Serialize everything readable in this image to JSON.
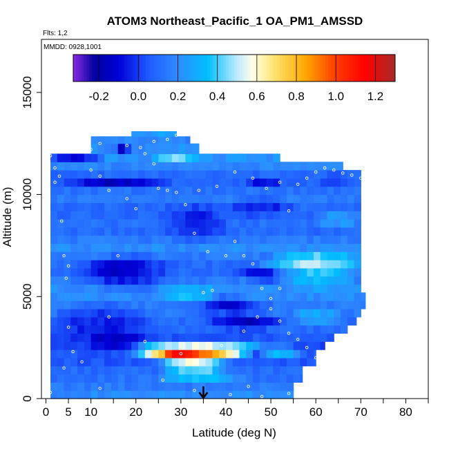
{
  "chart_data": {
    "type": "heatmap",
    "title": "ATOM3 Northeast_Pacific_1 OA_PM1_AMSSD",
    "notes": {
      "flights": "Flts: 1,2",
      "dates": "MMDD: 0928,1001"
    },
    "xlabel": "Latitude (deg N)",
    "ylabel": "Altitude (m)",
    "xlim": [
      -1,
      85
    ],
    "ylim": [
      0,
      17600
    ],
    "xticks": [
      0,
      5,
      10,
      20,
      30,
      40,
      50,
      60,
      70,
      80
    ],
    "xtick_labels": [
      "0",
      "5",
      "10",
      "20",
      "30",
      "40",
      "50",
      "60",
      "70",
      "80"
    ],
    "xtick_minor": [
      15,
      25,
      35,
      45,
      55,
      65,
      75,
      85
    ],
    "yticks": [
      0,
      5000,
      10000,
      15000
    ],
    "ytick_labels": [
      "0",
      "5000",
      "10000",
      "15000"
    ],
    "colorbar": {
      "range": [
        -0.33,
        1.3
      ],
      "ticks": [
        -0.2,
        0.0,
        0.2,
        0.4,
        0.6,
        0.8,
        1.0,
        1.2
      ],
      "tick_labels": [
        "-0.2",
        "0.0",
        "0.2",
        "0.4",
        "0.6",
        "0.8",
        "1.0",
        "1.2"
      ],
      "stops": [
        {
          "v": -0.33,
          "c": "#8a2be2"
        },
        {
          "v": -0.22,
          "c": "#0000a0"
        },
        {
          "v": -0.1,
          "c": "#0000d8"
        },
        {
          "v": 0.05,
          "c": "#1e5aff"
        },
        {
          "v": 0.2,
          "c": "#2f8bff"
        },
        {
          "v": 0.35,
          "c": "#00bfff"
        },
        {
          "v": 0.5,
          "c": "#bfeaff"
        },
        {
          "v": 0.58,
          "c": "#ffffe6"
        },
        {
          "v": 0.7,
          "c": "#ffe066"
        },
        {
          "v": 0.85,
          "c": "#ffa500"
        },
        {
          "v": 1.0,
          "c": "#ff3c00"
        },
        {
          "v": 1.15,
          "c": "#ff0000"
        },
        {
          "v": 1.3,
          "c": "#a52a2a"
        }
      ]
    },
    "default_value": 0.18,
    "grid": false,
    "bands": [
      {
        "y0": 0,
        "y1": 400,
        "lat_max": 55,
        "value": 0.2
      },
      {
        "y0": 400,
        "y1": 800,
        "lat_max": 55,
        "value": 0.15
      },
      {
        "y0": 800,
        "y1": 1200,
        "lat_max": 57,
        "value": 0.12
      },
      {
        "y0": 1200,
        "y1": 1600,
        "lat_max": 57,
        "value": 0.1
      },
      {
        "y0": 1600,
        "y1": 2000,
        "lat_max": 60,
        "value": 0.05
      },
      {
        "y0": 2000,
        "y1": 2400,
        "lat_max": 60,
        "value": 0.05
      },
      {
        "y0": 2400,
        "y1": 2800,
        "lat_max": 62,
        "value": 0.0
      },
      {
        "y0": 2800,
        "y1": 3200,
        "lat_max": 64,
        "value": 0.05
      },
      {
        "y0": 3200,
        "y1": 3600,
        "lat_max": 67,
        "value": 0.1
      },
      {
        "y0": 3600,
        "y1": 4000,
        "lat_max": 69,
        "value": 0.1
      },
      {
        "y0": 4000,
        "y1": 4400,
        "lat_max": 70,
        "value": 0.15
      },
      {
        "y0": 4400,
        "y1": 4800,
        "lat_max": 71,
        "value": 0.15
      },
      {
        "y0": 4800,
        "y1": 5200,
        "lat_max": 71,
        "value": 0.2
      },
      {
        "y0": 5200,
        "y1": 5600,
        "lat_max": 70,
        "value": 0.2
      },
      {
        "y0": 5600,
        "y1": 6000,
        "lat_max": 70,
        "value": 0.15
      },
      {
        "y0": 6000,
        "y1": 6400,
        "lat_max": 70,
        "value": 0.1
      },
      {
        "y0": 6400,
        "y1": 6800,
        "lat_max": 70,
        "value": 0.1
      },
      {
        "y0": 6800,
        "y1": 7200,
        "lat_max": 70,
        "value": 0.15
      },
      {
        "y0": 7200,
        "y1": 7600,
        "lat_max": 70,
        "value": 0.2
      },
      {
        "y0": 7600,
        "y1": 8000,
        "lat_max": 70,
        "value": 0.15
      },
      {
        "y0": 8000,
        "y1": 8400,
        "lat_max": 70,
        "value": 0.1
      },
      {
        "y0": 8400,
        "y1": 8800,
        "lat_max": 70,
        "value": 0.12
      },
      {
        "y0": 8800,
        "y1": 9200,
        "lat_max": 70,
        "value": 0.1
      },
      {
        "y0": 9200,
        "y1": 9600,
        "lat_max": 70,
        "value": 0.1
      },
      {
        "y0": 9600,
        "y1": 10000,
        "lat_max": 70,
        "value": 0.15
      },
      {
        "y0": 10000,
        "y1": 10400,
        "lat_max": 70,
        "value": 0.12
      },
      {
        "y0": 10400,
        "y1": 10800,
        "lat_max": 70,
        "value": 0.08
      },
      {
        "y0": 10800,
        "y1": 11200,
        "lat_max": 70,
        "value": 0.1
      },
      {
        "y0": 11200,
        "y1": 11600,
        "lat_max": 66,
        "value": 0.18
      },
      {
        "y0": 11600,
        "y1": 12000,
        "lat_max": 52,
        "value": 0.22
      },
      {
        "y0": 12000,
        "y1": 12500,
        "lat_max": 34,
        "value": 0.2
      },
      {
        "y0": 12500,
        "y1": 12850,
        "lat_max": 32,
        "value": 0.18
      },
      {
        "y0": 12850,
        "y1": 13100,
        "lat_max": 29,
        "value": 0.25
      }
    ],
    "band_starts": [
      {
        "y0": 0,
        "y1": 11200,
        "lat_min": 1
      },
      {
        "y0": 11200,
        "y1": 12000,
        "lat_min": 1
      },
      {
        "y0": 12000,
        "y1": 12500,
        "lat_min": 10
      },
      {
        "y0": 12500,
        "y1": 12850,
        "lat_min": 10
      },
      {
        "y0": 12850,
        "y1": 13100,
        "lat_min": 19
      }
    ],
    "features": [
      {
        "lat": [
          21,
          44
        ],
        "alt": [
          1800,
          2400
        ],
        "value": 1.05
      },
      {
        "lat": [
          24,
          42
        ],
        "alt": [
          1400,
          1800
        ],
        "value": 0.85
      },
      {
        "lat": [
          20,
          48
        ],
        "alt": [
          2400,
          2800
        ],
        "value": 0.55
      },
      {
        "lat": [
          22,
          45
        ],
        "alt": [
          1000,
          1400
        ],
        "value": 0.55
      },
      {
        "lat": [
          20,
          49
        ],
        "alt": [
          800,
          1000
        ],
        "value": 0.45
      },
      {
        "lat": [
          27,
          33
        ],
        "alt": [
          1900,
          2300
        ],
        "value": 1.2
      },
      {
        "lat": [
          48,
          57
        ],
        "alt": [
          2000,
          2600
        ],
        "value": 0.35
      },
      {
        "lat": [
          2,
          22
        ],
        "alt": [
          2600,
          4600
        ],
        "value": -0.05
      },
      {
        "lat": [
          10,
          21
        ],
        "alt": [
          2400,
          3400
        ],
        "value": -0.15
      },
      {
        "lat": [
          8,
          28
        ],
        "alt": [
          5400,
          7000
        ],
        "value": -0.05
      },
      {
        "lat": [
          10,
          22
        ],
        "alt": [
          5800,
          6800
        ],
        "value": -0.15
      },
      {
        "lat": [
          30,
          48
        ],
        "alt": [
          4200,
          5000
        ],
        "value": -0.1
      },
      {
        "lat": [
          37,
          52
        ],
        "alt": [
          3400,
          4200
        ],
        "value": -0.15
      },
      {
        "lat": [
          42,
          58
        ],
        "alt": [
          5800,
          6400
        ],
        "value": -0.1
      },
      {
        "lat": [
          50,
          70
        ],
        "alt": [
          6000,
          7200
        ],
        "value": 0.5
      },
      {
        "lat": [
          52,
          68
        ],
        "alt": [
          5400,
          6000
        ],
        "value": 0.35
      },
      {
        "lat": [
          26,
          38
        ],
        "alt": [
          4600,
          5600
        ],
        "value": 0.35
      },
      {
        "lat": [
          26,
          40
        ],
        "alt": [
          7800,
          9600
        ],
        "value": -0.05
      },
      {
        "lat": [
          40,
          55
        ],
        "alt": [
          9000,
          9800
        ],
        "value": -0.05
      },
      {
        "lat": [
          45,
          52
        ],
        "alt": [
          10400,
          10800
        ],
        "value": -0.1
      },
      {
        "lat": [
          5,
          25
        ],
        "alt": [
          10400,
          10800
        ],
        "value": -0.15
      },
      {
        "lat": [
          1,
          12
        ],
        "alt": [
          11600,
          12000
        ],
        "value": -0.1
      },
      {
        "lat": [
          24,
          34
        ],
        "alt": [
          11600,
          12200
        ],
        "value": 0.45
      },
      {
        "lat": [
          60,
          68
        ],
        "alt": [
          10400,
          11000
        ],
        "value": 0.0
      },
      {
        "lat": [
          15,
          19
        ],
        "alt": [
          12200,
          12600
        ],
        "value": -0.3
      },
      {
        "lat": [
          60,
          70
        ],
        "alt": [
          8400,
          9200
        ],
        "value": 0.25
      },
      {
        "lat": [
          55,
          65
        ],
        "alt": [
          3600,
          4400
        ],
        "value": 0.3
      }
    ],
    "annotations": [
      {
        "type": "arrow",
        "lat": 35,
        "alt_from": 600,
        "alt_to": 0
      }
    ],
    "sample_points": [
      [
        1,
        11900
      ],
      [
        2,
        11300
      ],
      [
        3,
        10900
      ],
      [
        3.5,
        8700
      ],
      [
        4,
        7000
      ],
      [
        4.5,
        5900
      ],
      [
        5,
        3500
      ],
      [
        4,
        1500
      ],
      [
        1,
        300
      ],
      [
        10,
        11200
      ],
      [
        12,
        10900
      ],
      [
        14,
        10200
      ],
      [
        18,
        9800
      ],
      [
        20,
        9300
      ],
      [
        16,
        7000
      ],
      [
        14,
        4000
      ],
      [
        10,
        12200
      ],
      [
        12,
        12500
      ],
      [
        22,
        12000
      ],
      [
        24,
        11500
      ],
      [
        25,
        10300
      ],
      [
        27,
        10200
      ],
      [
        29,
        10100
      ],
      [
        31,
        9500
      ],
      [
        33,
        8100
      ],
      [
        36,
        7200
      ],
      [
        40,
        7000
      ],
      [
        42,
        7700
      ],
      [
        44,
        7000
      ],
      [
        46,
        6600
      ],
      [
        48,
        5400
      ],
      [
        50,
        4400
      ],
      [
        52,
        3800
      ],
      [
        54,
        3200
      ],
      [
        56,
        2900
      ],
      [
        58,
        2500
      ],
      [
        60,
        2000
      ],
      [
        62,
        1700
      ],
      [
        64,
        1200
      ],
      [
        66,
        900
      ],
      [
        68,
        700
      ],
      [
        70,
        500
      ],
      [
        27,
        12700
      ],
      [
        29,
        12900
      ],
      [
        24,
        12600
      ],
      [
        21,
        12300
      ],
      [
        18,
        12400
      ],
      [
        35,
        5200
      ],
      [
        37,
        5300
      ],
      [
        39,
        2600
      ],
      [
        44,
        3300
      ],
      [
        47,
        4000
      ],
      [
        50,
        4900
      ],
      [
        52,
        5400
      ],
      [
        54,
        9200
      ],
      [
        56,
        10500
      ],
      [
        58,
        10800
      ],
      [
        60,
        11100
      ],
      [
        62,
        11300
      ],
      [
        64,
        11200
      ],
      [
        66,
        11050
      ],
      [
        68,
        10950
      ],
      [
        70,
        10800
      ],
      [
        52,
        10600
      ],
      [
        49,
        10300
      ],
      [
        46,
        10800
      ],
      [
        42,
        11100
      ],
      [
        38,
        10400
      ],
      [
        34,
        10200
      ],
      [
        30,
        2200
      ],
      [
        22,
        2800
      ],
      [
        26,
        900
      ],
      [
        33,
        400
      ],
      [
        41,
        200
      ],
      [
        48,
        100
      ],
      [
        54,
        250
      ],
      [
        45,
        600
      ],
      [
        12,
        500
      ],
      [
        8,
        1800
      ],
      [
        6,
        2300
      ],
      [
        5,
        6500
      ],
      [
        2,
        10600
      ]
    ],
    "colors": {
      "sample_point": "#ffffff",
      "axis": "#000000",
      "arrow": "#000000"
    }
  }
}
